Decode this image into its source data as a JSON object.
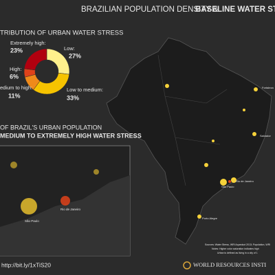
{
  "header": {
    "title": "BRAZILIAN POPULATION DENSITY &",
    "title_bold": "BASELINE WATER STRE"
  },
  "chart_data": {
    "type": "pie",
    "title": "TRIBUTION OF URBAN WATER STRESS",
    "categories": [
      "Low:",
      "Low to medium:",
      "edium to high:",
      "High:",
      "Extremely high:"
    ],
    "values": [
      27,
      33,
      11,
      6,
      23
    ],
    "value_labels": [
      "27%",
      "33%",
      "11%",
      "6%",
      "23%"
    ],
    "colors": [
      "#fff08c",
      "#f6c300",
      "#ef8a1a",
      "#e0421a",
      "#b0000f"
    ]
  },
  "inset": {
    "heading": "OF BRAZIL'S URBAN POPULATION",
    "heading_bold": "MEDIUM TO EXTREMELY HIGH WATER STRESS",
    "cities": [
      "São Paulo",
      "Rio de Janeiro"
    ]
  },
  "map": {
    "cities": [
      "Fortaleza",
      "Salvador",
      "Rio de Janeiro",
      "São Paulo",
      "Porto Alegre"
    ]
  },
  "footer": {
    "link": "http://bit.ly/1xTiS20",
    "org": "WORLD RESOURCES INSTI",
    "notes": [
      "Sources: Water Stress, WRI Aqueduct 2013; Population, WRI",
      "Notes: Higher color saturation indicates high",
      "Urban is defined as living in a city of 1"
    ]
  }
}
